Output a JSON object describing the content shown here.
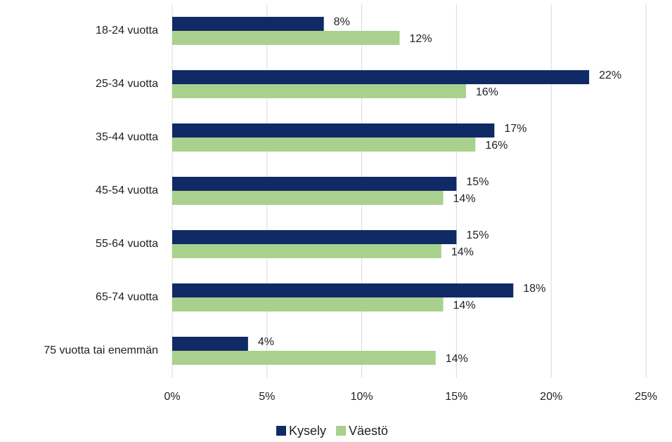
{
  "chart_data": {
    "type": "bar",
    "orientation": "horizontal",
    "categories": [
      "18-24 vuotta",
      "25-34 vuotta",
      "35-44 vuotta",
      "45-54 vuotta",
      "55-64 vuotta",
      "65-74 vuotta",
      "75 vuotta tai enemmän"
    ],
    "series": [
      {
        "name": "Kysely",
        "color": "#102a66",
        "values": [
          8,
          22,
          17,
          15,
          15,
          18,
          4
        ],
        "value_labels": [
          "8%",
          "22%",
          "17%",
          "15%",
          "15%",
          "18%",
          "4%"
        ]
      },
      {
        "name": "Väestö",
        "color": "#a9d18e",
        "values": [
          12,
          15.5,
          16,
          14.3,
          14.2,
          14.3,
          13.9
        ],
        "value_labels": [
          "12%",
          "16%",
          "16%",
          "14%",
          "14%",
          "14%",
          "14%"
        ]
      }
    ],
    "xlim": [
      0,
      25
    ],
    "xticks": [
      {
        "value": 0,
        "label": "0%"
      },
      {
        "value": 5,
        "label": "5%"
      },
      {
        "value": 10,
        "label": "10%"
      },
      {
        "value": 15,
        "label": "15%"
      },
      {
        "value": 20,
        "label": "20%"
      },
      {
        "value": 25,
        "label": "25%"
      }
    ],
    "grid": true,
    "legend": "bottom"
  }
}
